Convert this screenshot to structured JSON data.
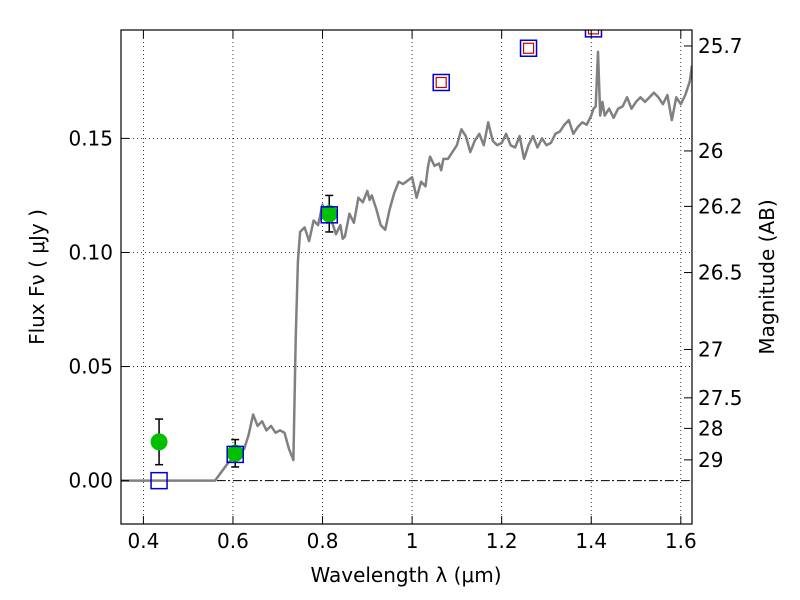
{
  "chart_data": {
    "type": "scatter",
    "xlabel": "Wavelength  λ (μm)",
    "ylabel": "Flux  Fν  ( μJy )",
    "ylabel_right": "Magnitude (AB)",
    "xlim": [
      0.35,
      1.625
    ],
    "ylim": [
      -0.019,
      0.1975
    ],
    "x_ticks": [
      0.4,
      0.6,
      0.8,
      1.0,
      1.2,
      1.4,
      1.6
    ],
    "x_tick_labels": [
      "0.4",
      "0.6",
      "0.8",
      "1",
      "1.2",
      "1.4",
      "1.6"
    ],
    "y_ticks": [
      0.0,
      0.05,
      0.1,
      0.15
    ],
    "y_tick_labels": [
      "0.00",
      "0.05",
      "0.10",
      "0.15"
    ],
    "mag_ticks": [
      {
        "label": "25.7",
        "flux": 0.1905
      },
      {
        "label": "26",
        "flux": 0.1445
      },
      {
        "label": "26.2",
        "flux": 0.1202
      },
      {
        "label": "26.5",
        "flux": 0.0912
      },
      {
        "label": "27",
        "flux": 0.0575
      },
      {
        "label": "27.5",
        "flux": 0.0363
      },
      {
        "label": "28",
        "flux": 0.0229
      },
      {
        "label": "29",
        "flux": 0.0091
      }
    ],
    "grid": true,
    "series": [
      {
        "kind": "line",
        "color": "#808080",
        "x": [
          0.35,
          0.56,
          0.59,
          0.61,
          0.625,
          0.635,
          0.645,
          0.655,
          0.665,
          0.675,
          0.685,
          0.695,
          0.705,
          0.715,
          0.725,
          0.735,
          0.74,
          0.745,
          0.75,
          0.76,
          0.77,
          0.78,
          0.79,
          0.8,
          0.81,
          0.82,
          0.83,
          0.84,
          0.845,
          0.85,
          0.86,
          0.87,
          0.88,
          0.89,
          0.9,
          0.905,
          0.91,
          0.92,
          0.93,
          0.94,
          0.95,
          0.96,
          0.97,
          0.98,
          1.0,
          1.01,
          1.02,
          1.03,
          1.035,
          1.04,
          1.05,
          1.06,
          1.065,
          1.07,
          1.08,
          1.09,
          1.1,
          1.11,
          1.12,
          1.13,
          1.14,
          1.15,
          1.16,
          1.17,
          1.18,
          1.19,
          1.2,
          1.21,
          1.22,
          1.23,
          1.24,
          1.25,
          1.26,
          1.27,
          1.28,
          1.29,
          1.3,
          1.31,
          1.32,
          1.33,
          1.34,
          1.35,
          1.36,
          1.37,
          1.38,
          1.39,
          1.4,
          1.405,
          1.41,
          1.415,
          1.42,
          1.425,
          1.43,
          1.44,
          1.45,
          1.46,
          1.47,
          1.48,
          1.49,
          1.5,
          1.51,
          1.52,
          1.53,
          1.54,
          1.55,
          1.56,
          1.57,
          1.58,
          1.59,
          1.6,
          1.61,
          1.62,
          1.625
        ],
        "y": [
          0.0,
          0.0,
          0.008,
          0.011,
          0.014,
          0.02,
          0.029,
          0.024,
          0.026,
          0.022,
          0.024,
          0.021,
          0.022,
          0.021,
          0.014,
          0.009,
          0.062,
          0.096,
          0.109,
          0.111,
          0.105,
          0.114,
          0.112,
          0.121,
          0.113,
          0.114,
          0.108,
          0.112,
          0.106,
          0.107,
          0.117,
          0.113,
          0.124,
          0.122,
          0.127,
          0.123,
          0.125,
          0.119,
          0.112,
          0.11,
          0.119,
          0.126,
          0.131,
          0.13,
          0.133,
          0.124,
          0.131,
          0.129,
          0.137,
          0.142,
          0.138,
          0.139,
          0.136,
          0.141,
          0.141,
          0.144,
          0.147,
          0.154,
          0.151,
          0.144,
          0.149,
          0.152,
          0.147,
          0.157,
          0.149,
          0.147,
          0.148,
          0.152,
          0.147,
          0.146,
          0.151,
          0.141,
          0.147,
          0.151,
          0.146,
          0.15,
          0.147,
          0.148,
          0.152,
          0.153,
          0.156,
          0.158,
          0.152,
          0.155,
          0.157,
          0.156,
          0.16,
          0.163,
          0.164,
          0.188,
          0.16,
          0.166,
          0.16,
          0.163,
          0.159,
          0.163,
          0.164,
          0.168,
          0.163,
          0.166,
          0.168,
          0.166,
          0.168,
          0.17,
          0.168,
          0.165,
          0.169,
          0.158,
          0.168,
          0.165,
          0.169,
          0.175,
          0.182
        ]
      },
      {
        "kind": "points",
        "marker": "circle",
        "color": "#00c000",
        "x": [
          0.435,
          0.605,
          0.815
        ],
        "y": [
          0.017,
          0.012,
          0.117
        ],
        "yerr": [
          0.01,
          0.006,
          0.008
        ]
      },
      {
        "kind": "points",
        "marker": "square",
        "color": "#0000cc",
        "x": [
          0.435,
          0.605,
          0.815,
          1.065,
          1.26,
          1.405
        ],
        "y": [
          0.0,
          0.0115,
          0.1165,
          0.1745,
          0.1895,
          0.198
        ]
      },
      {
        "kind": "points",
        "marker": "small-square",
        "color": "#cc0000",
        "x": [
          1.065,
          1.26,
          1.405
        ],
        "y": [
          0.1745,
          0.1895,
          0.198
        ]
      }
    ]
  }
}
